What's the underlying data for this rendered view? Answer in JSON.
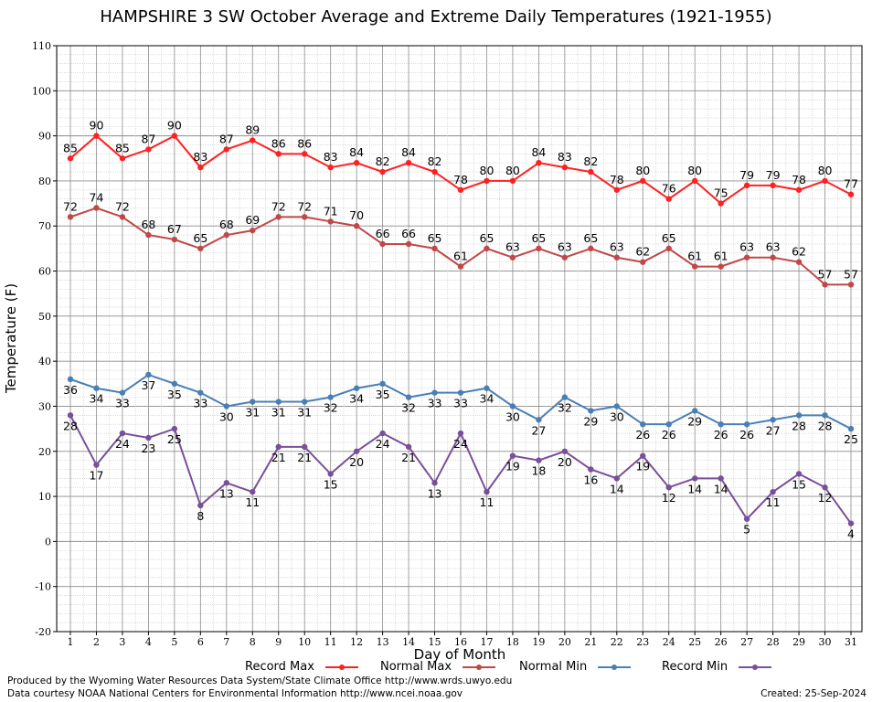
{
  "colors": {
    "record_max": "#ff2020",
    "normal_max": "#c04848",
    "normal_min": "#4a7fb5",
    "record_min": "#7a4f9a",
    "grid": "#c8c8c8",
    "grid_major": "#8c8c8c"
  },
  "footer": {
    "credit_line_1": "Produced by the Wyoming Water Resources Data System/State Climate Office http://www.wrds.uwyo.edu",
    "credit_line_2": "Data courtesy NOAA National Centers for Environmental Information http://www.ncei.noaa.gov",
    "created": "Created:  25-Sep-2024"
  },
  "chart_data": {
    "type": "line",
    "title": "HAMPSHIRE 3 SW October Average and Extreme Daily Temperatures (1921-1955)",
    "xlabel": "Day of Month",
    "ylabel": "Temperature (F)",
    "ylim": [
      -20,
      110
    ],
    "yticks": [
      -20,
      -10,
      0,
      10,
      20,
      30,
      40,
      50,
      60,
      70,
      80,
      90,
      100,
      110
    ],
    "x": [
      1,
      2,
      3,
      4,
      5,
      6,
      7,
      8,
      9,
      10,
      11,
      12,
      13,
      14,
      15,
      16,
      17,
      18,
      19,
      20,
      21,
      22,
      23,
      24,
      25,
      26,
      27,
      28,
      29,
      30,
      31
    ],
    "grid": true,
    "legend_position": "bottom",
    "series": [
      {
        "name": "Record Max",
        "color": "#ff2020",
        "label_pos": "above",
        "values": [
          85,
          90,
          85,
          87,
          90,
          83,
          87,
          89,
          86,
          86,
          83,
          84,
          82,
          84,
          82,
          78,
          80,
          80,
          84,
          83,
          82,
          78,
          80,
          76,
          80,
          75,
          79,
          79,
          78,
          80,
          77
        ]
      },
      {
        "name": "Normal Max",
        "color": "#c04848",
        "label_pos": "above",
        "values": [
          72,
          74,
          72,
          68,
          67,
          65,
          68,
          69,
          72,
          72,
          71,
          70,
          66,
          66,
          65,
          61,
          65,
          63,
          65,
          63,
          65,
          63,
          62,
          65,
          61,
          61,
          63,
          63,
          62,
          57,
          57
        ]
      },
      {
        "name": "Normal Min",
        "color": "#4a7fb5",
        "label_pos": "below",
        "values": [
          36,
          34,
          33,
          37,
          35,
          33,
          30,
          31,
          31,
          31,
          32,
          34,
          35,
          32,
          33,
          33,
          34,
          30,
          27,
          32,
          29,
          30,
          26,
          26,
          29,
          26,
          26,
          27,
          28,
          28,
          25
        ]
      },
      {
        "name": "Record Min",
        "color": "#7a4f9a",
        "label_pos": "below",
        "values": [
          28,
          17,
          24,
          23,
          25,
          8,
          13,
          11,
          21,
          21,
          15,
          20,
          24,
          21,
          13,
          24,
          11,
          19,
          18,
          20,
          16,
          14,
          19,
          12,
          14,
          14,
          5,
          11,
          15,
          12,
          4
        ]
      }
    ]
  }
}
